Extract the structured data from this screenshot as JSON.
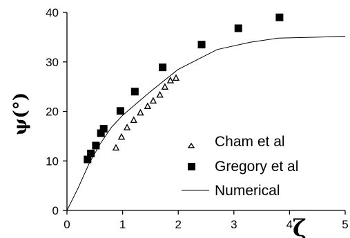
{
  "chart_data": {
    "type": "scatter",
    "title": "",
    "xlabel": "ζ",
    "ylabel": "ψ(°)",
    "xlim": [
      0,
      5
    ],
    "ylim": [
      0,
      40
    ],
    "x_ticks": [
      0,
      1,
      2,
      3,
      4,
      5
    ],
    "y_ticks": [
      0,
      10,
      20,
      30,
      40
    ],
    "grid": false,
    "legend_position": "bottom-right",
    "series": [
      {
        "name": "Cham et al",
        "marker": "open-triangle",
        "color": "#000000",
        "x": [
          0.88,
          0.98,
          1.08,
          1.2,
          1.32,
          1.45,
          1.55,
          1.67,
          1.76,
          1.86,
          1.96
        ],
        "y": [
          12.6,
          14.8,
          16.7,
          18.2,
          19.7,
          21.0,
          22.1,
          23.3,
          24.9,
          26.2,
          26.7
        ]
      },
      {
        "name": "Gregory et al",
        "marker": "filled-square",
        "color": "#000000",
        "x": [
          0.37,
          0.43,
          0.52,
          0.61,
          0.66,
          0.96,
          1.22,
          1.72,
          2.42,
          3.08,
          3.82
        ],
        "y": [
          10.3,
          11.5,
          13.1,
          15.6,
          16.5,
          20.1,
          24.0,
          28.9,
          33.5,
          36.8,
          39.0
        ]
      },
      {
        "name": "Numerical",
        "marker": "line",
        "color": "#000000",
        "x": [
          0,
          0.2,
          0.4,
          0.6,
          0.8,
          1.0,
          1.5,
          2.0,
          2.7,
          3.3,
          3.8,
          4.5,
          5.0
        ],
        "y": [
          0,
          4.5,
          9.5,
          13.5,
          16.8,
          19.2,
          24.0,
          28.5,
          32.5,
          34.0,
          34.8,
          35.0,
          35.2
        ]
      }
    ]
  }
}
